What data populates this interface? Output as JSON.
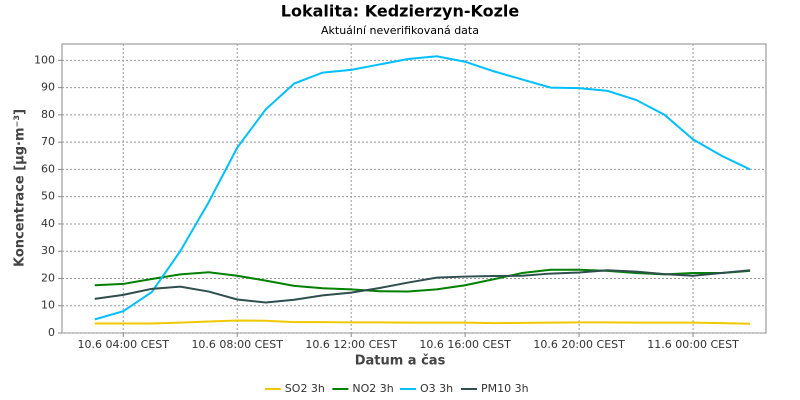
{
  "chart_data": {
    "type": "line",
    "title": "Lokalita: Kedzierzyn-Kozle",
    "subtitle": "Aktuální neverifikovaná data",
    "x_label": "Datum a čas",
    "y_label": "Koncentrace [µg·m⁻³]",
    "x": [
      3,
      4,
      5,
      6,
      7,
      8,
      9,
      10,
      11,
      12,
      13,
      14,
      15,
      16,
      17,
      18,
      19,
      20,
      21,
      22,
      23,
      24,
      25,
      26
    ],
    "xlim": [
      1.85,
      26.56
    ],
    "xticks": [
      {
        "value": 4,
        "label": "10.6 04:00 CEST"
      },
      {
        "value": 8,
        "label": "10.6 08:00 CEST"
      },
      {
        "value": 12,
        "label": "10.6 12:00 CEST"
      },
      {
        "value": 16,
        "label": "10.6 16:00 CEST"
      },
      {
        "value": 20,
        "label": "10.6 20:00 CEST"
      },
      {
        "value": 24,
        "label": "11.6 00:00 CEST"
      }
    ],
    "ylim": [
      0,
      106
    ],
    "yticks": [
      0,
      10,
      20,
      30,
      40,
      50,
      60,
      70,
      80,
      90,
      100
    ],
    "grid": true,
    "legend": "bottom",
    "series": [
      {
        "name": "SO2 3h",
        "color": "#f0c800",
        "values": [
          3.5,
          3.5,
          3.5,
          3.8,
          4.2,
          4.6,
          4.5,
          4,
          4,
          3.9,
          3.9,
          3.8,
          3.8,
          3.8,
          3.6,
          3.7,
          3.8,
          3.9,
          3.9,
          3.8,
          3.8,
          3.8,
          3.6,
          3.4
        ]
      },
      {
        "name": "NO2 3h",
        "color": "#008000",
        "values": [
          17.5,
          18,
          19.8,
          21.5,
          22.3,
          21,
          19.2,
          17.3,
          16.4,
          16,
          15.3,
          15.2,
          16,
          17.5,
          19.7,
          22,
          23.2,
          23.2,
          22.8,
          22,
          21.5,
          22,
          22,
          22.8
        ]
      },
      {
        "name": "O3 3h",
        "color": "#00bfff",
        "values": [
          5,
          8,
          15,
          30,
          48,
          68,
          82,
          91.5,
          95.5,
          96.5,
          98.5,
          100.5,
          101.5,
          99.5,
          96,
          93,
          90,
          89.8,
          88.8,
          85.5,
          80,
          71,
          65,
          60
        ]
      },
      {
        "name": "PM10 3h",
        "color": "#2f4f4f",
        "values": [
          12.5,
          14,
          16.2,
          17,
          15.2,
          12.3,
          11.2,
          12.2,
          13.8,
          14.8,
          16.5,
          18.5,
          20.3,
          20.7,
          20.9,
          21,
          21.8,
          22.2,
          23,
          22.5,
          21.6,
          21,
          22,
          23
        ]
      }
    ]
  }
}
